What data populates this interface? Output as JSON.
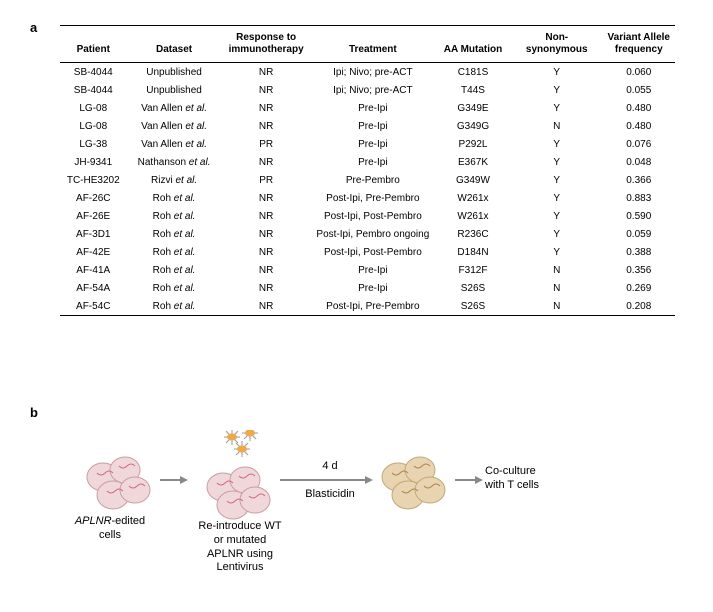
{
  "panels": {
    "a": "a",
    "b": "b"
  },
  "table": {
    "headers": [
      "Patient",
      "Dataset",
      "Response to\nimmunotherapy",
      "Treatment",
      "AA Mutation",
      "Non-synonymous",
      "Variant Allele\nfrequency"
    ],
    "rows": [
      [
        "SB-4044",
        "Unpublished",
        "NR",
        "Ipi; Nivo; pre-ACT",
        "C181S",
        "Y",
        "0.060"
      ],
      [
        "SB-4044",
        "Unpublished",
        "NR",
        "Ipi; Nivo; pre-ACT",
        "T44S",
        "Y",
        "0.055"
      ],
      [
        "LG-08",
        "Van Allen et al.",
        "NR",
        "Pre-Ipi",
        "G349E",
        "Y",
        "0.480"
      ],
      [
        "LG-08",
        "Van Allen et al.",
        "NR",
        "Pre-Ipi",
        "G349G",
        "N",
        "0.480"
      ],
      [
        "LG-38",
        "Van Allen et al.",
        "PR",
        "Pre-Ipi",
        "P292L",
        "Y",
        "0.076"
      ],
      [
        "JH-9341",
        "Nathanson et al.",
        "NR",
        "Pre-Ipi",
        "E367K",
        "Y",
        "0.048"
      ],
      [
        "TC-HE3202",
        "Rizvi et al.",
        "PR",
        "Pre-Pembro",
        "G349W",
        "Y",
        "0.366"
      ],
      [
        "AF-26C",
        "Roh et al.",
        "NR",
        "Post-Ipi, Pre-Pembro",
        "W261x",
        "Y",
        "0.883"
      ],
      [
        "AF-26E",
        "Roh et al.",
        "NR",
        "Post-Ipi, Post-Pembro",
        "W261x",
        "Y",
        "0.590"
      ],
      [
        "AF-3D1",
        "Roh et al.",
        "NR",
        "Post-Ipi, Pembro ongoing",
        "R236C",
        "Y",
        "0.059"
      ],
      [
        "AF-42E",
        "Roh et al.",
        "NR",
        "Post-Ipi, Post-Pembro",
        "D184N",
        "Y",
        "0.388"
      ],
      [
        "AF-41A",
        "Roh et al.",
        "NR",
        "Pre-Ipi",
        "F312F",
        "N",
        "0.356"
      ],
      [
        "AF-54A",
        "Roh et al.",
        "NR",
        "Pre-Ipi",
        "S26S",
        "N",
        "0.269"
      ],
      [
        "AF-54C",
        "Roh et al.",
        "NR",
        "Post-Ipi, Pre-Pembro",
        "S26S",
        "N",
        "0.208"
      ]
    ],
    "header_fontsize": 10,
    "cell_fontsize": 10,
    "border_color": "#000000",
    "italic_col": 1
  },
  "diagram": {
    "step1_label_italic": "APLNR",
    "step1_label_rest": "-edited\ncells",
    "step2_label": "Re-introduce WT\nor mutated\nAPLNR using\nLentivirus",
    "arrow2_top": "4 d",
    "arrow2_bottom": "Blasticidin",
    "step4_label": "Co-culture\nwith T cells",
    "colors": {
      "cells_pink_fill": "#f0d8da",
      "cells_pink_stroke": "#c99ca0",
      "cells_tan_fill": "#e8d4b0",
      "cells_tan_stroke": "#c0a878",
      "virus_body": "#f0a848",
      "virus_spike": "#999999",
      "arrow": "#888888",
      "arrow_line": "#888888",
      "dna": "#d07080"
    },
    "font_size": 11
  }
}
